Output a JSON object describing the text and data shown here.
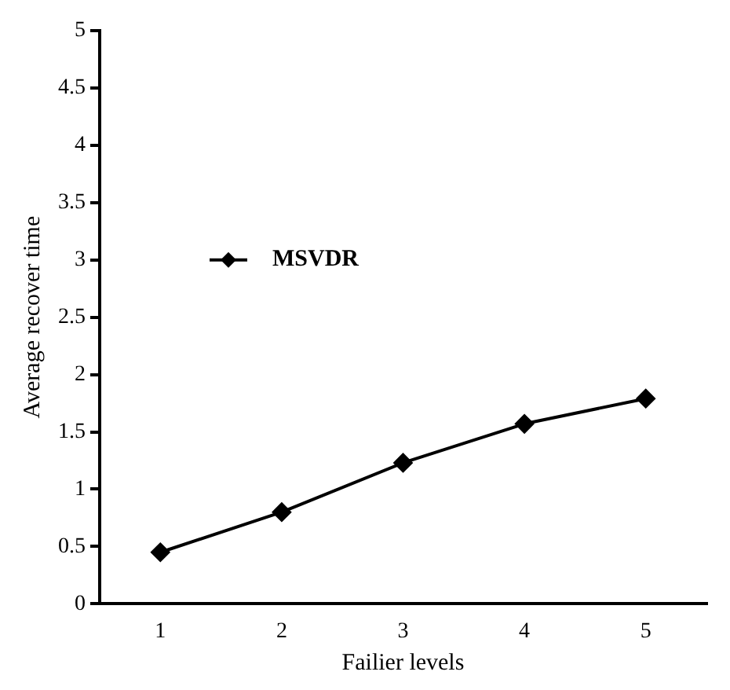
{
  "chart_data": {
    "type": "line",
    "xlabel": "Failier levels",
    "ylabel": "Average recover time",
    "categories": [
      "1",
      "2",
      "3",
      "4",
      "5"
    ],
    "series": [
      {
        "name": "MSVDR",
        "color": "#000000",
        "values": [
          0.45,
          0.8,
          1.23,
          1.57,
          1.79
        ]
      }
    ],
    "ylim": [
      0,
      5
    ],
    "yticks": [
      0,
      0.5,
      1,
      1.5,
      2,
      2.5,
      3,
      3.5,
      4,
      4.5,
      5
    ],
    "grid": false,
    "legend": "left",
    "marker": "diamond",
    "line_style": "solid"
  }
}
